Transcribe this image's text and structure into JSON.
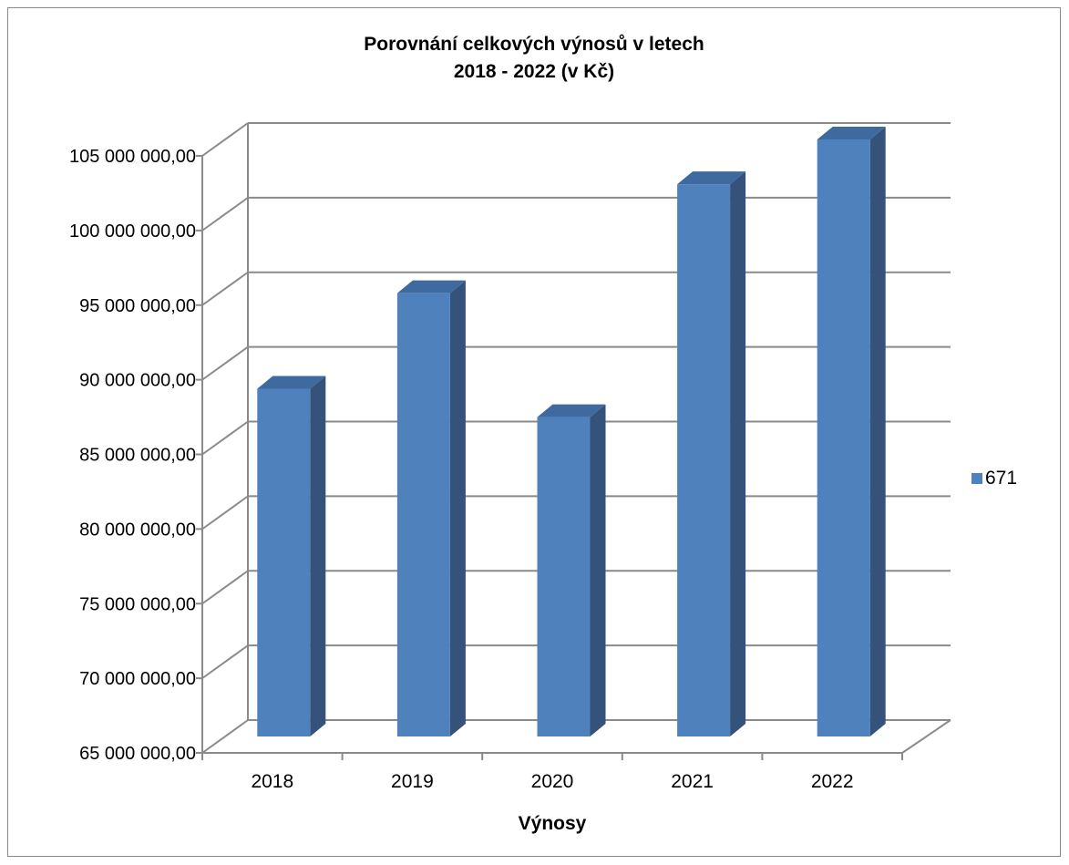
{
  "chart_data": {
    "type": "bar",
    "title_line1": "Porovnání celkových výnosů v letech",
    "title_line2": "2018 - 2022 (v Kč)",
    "xlabel": "Výnosy",
    "ylabel": "",
    "categories": [
      "2018",
      "2019",
      "2020",
      "2021",
      "2022"
    ],
    "series": [
      {
        "name": "671",
        "values": [
          88300000,
          94700000,
          86400000,
          102000000,
          105000000
        ]
      }
    ],
    "ylim": [
      65000000,
      105000000
    ],
    "ytick_values": [
      65000000,
      70000000,
      75000000,
      80000000,
      85000000,
      90000000,
      95000000,
      100000000,
      105000000
    ],
    "ytick_labels": [
      "65 000 000,00",
      "70 000 000,00",
      "75 000 000,00",
      "80 000 000,00",
      "85 000 000,00",
      "90 000 000,00",
      "95 000 000,00",
      "100 000 000,00",
      "105 000 000,00"
    ],
    "grid": true,
    "style": "3d-column",
    "legend_position": "right",
    "colors": {
      "bar_front": "#4f81bd",
      "bar_side": "#34527a",
      "bar_top": "#3f6aa0",
      "grid": "#8a8a8a"
    }
  }
}
